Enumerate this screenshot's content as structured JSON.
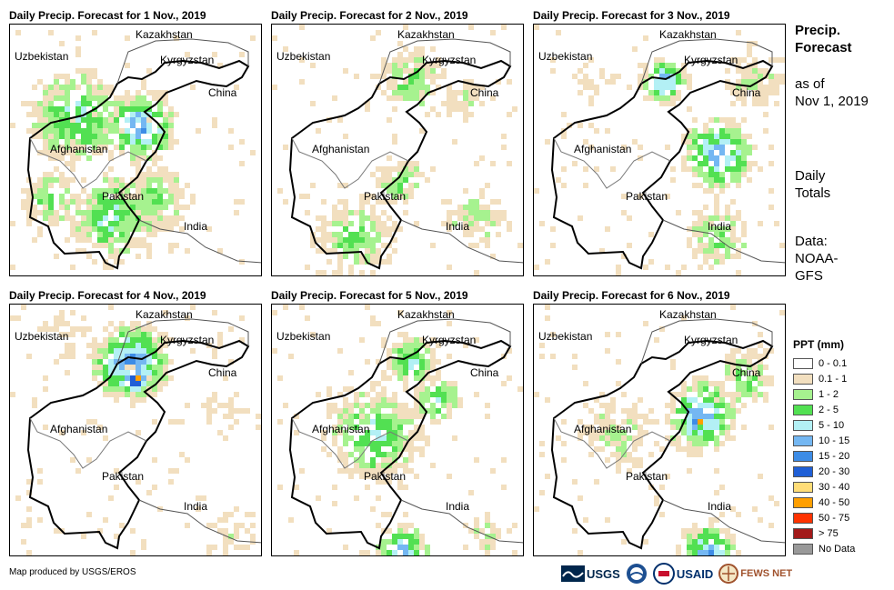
{
  "panels": [
    {
      "title": "Daily Precip. Forecast for 1 Nov., 2019"
    },
    {
      "title": "Daily Precip. Forecast for 2 Nov., 2019"
    },
    {
      "title": "Daily Precip. Forecast for 3 Nov., 2019"
    },
    {
      "title": "Daily Precip. Forecast for 4 Nov., 2019"
    },
    {
      "title": "Daily Precip. Forecast for 5 Nov., 2019"
    },
    {
      "title": "Daily Precip. Forecast for 6 Nov., 2019"
    }
  ],
  "countries": {
    "kazakhstan": "Kazakhstan",
    "uzbekistan": "Uzbekistan",
    "kyrgyzstan": "Kyrgyzstan",
    "china": "China",
    "afghanistan": "Afghanistan",
    "pakistan": "Pakistan",
    "india": "India"
  },
  "side": {
    "title_line1": "Precip.",
    "title_line2": "Forecast",
    "asof_line1": "as of",
    "asof_line2": "Nov 1, 2019",
    "totals_line1": "Daily",
    "totals_line2": "Totals",
    "data_line1": "Data:",
    "data_line2": "NOAA-",
    "data_line3": "GFS"
  },
  "legend": {
    "title": "PPT (mm)",
    "items": [
      {
        "label": "0 - 0.1",
        "color": "#ffffff"
      },
      {
        "label": "0.1 - 1",
        "color": "#f2dfbf"
      },
      {
        "label": "1 - 2",
        "color": "#a6f28f"
      },
      {
        "label": "2 - 5",
        "color": "#52e052"
      },
      {
        "label": "5 - 10",
        "color": "#b3f0f5"
      },
      {
        "label": "10 - 15",
        "color": "#74b7f2"
      },
      {
        "label": "15 - 20",
        "color": "#3d8ce6"
      },
      {
        "label": "20 - 30",
        "color": "#1f5fd6"
      },
      {
        "label": "30 - 40",
        "color": "#ffdd77"
      },
      {
        "label": "40 - 50",
        "color": "#ff9f00"
      },
      {
        "label": "50 - 75",
        "color": "#ff3300"
      },
      {
        "label": "> 75",
        "color": "#a31a1a"
      },
      {
        "label": "No Data",
        "color": "#999999"
      }
    ]
  },
  "credit": "Map produced by USGS/EROS",
  "logos": {
    "usgs": "USGS",
    "usaid": "USAID",
    "fewsnet": "FEWS NET"
  }
}
